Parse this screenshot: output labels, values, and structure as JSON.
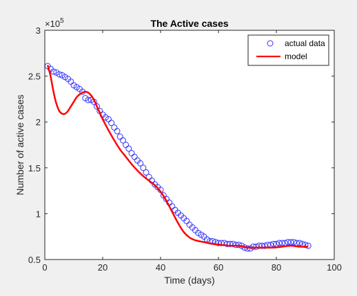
{
  "chart_data": {
    "type": "scatter",
    "title": "The Active cases",
    "xlabel": "Time (days)",
    "ylabel": "Number of active cases",
    "y_exponent_label": "×10",
    "y_exponent_power": "5",
    "xlim": [
      0,
      100
    ],
    "ylim": [
      0.5,
      3
    ],
    "xticks": [
      0,
      20,
      40,
      60,
      80,
      100
    ],
    "xtick_labels": [
      "0",
      "20",
      "40",
      "60",
      "80",
      "100"
    ],
    "yticks": [
      0.5,
      1,
      1.5,
      2,
      2.5,
      3
    ],
    "ytick_labels": [
      "0.5",
      "1",
      "1.5",
      "2",
      "2.5",
      "3"
    ],
    "grid": false,
    "legend_position": "top-right",
    "series": [
      {
        "name": "actual data",
        "kind": "markers",
        "marker": "circle-open",
        "color": "#3333ff",
        "x": [
          1,
          2,
          3,
          4,
          5,
          6,
          7,
          8,
          9,
          10,
          11,
          12,
          13,
          14,
          15,
          16,
          17,
          18,
          19,
          20,
          21,
          22,
          23,
          24,
          25,
          26,
          27,
          28,
          29,
          30,
          31,
          32,
          33,
          34,
          35,
          36,
          37,
          38,
          39,
          40,
          41,
          42,
          43,
          44,
          45,
          46,
          47,
          48,
          49,
          50,
          51,
          52,
          53,
          54,
          55,
          56,
          57,
          58,
          59,
          60,
          61,
          62,
          63,
          64,
          65,
          66,
          67,
          68,
          69,
          70,
          71,
          72,
          73,
          74,
          75,
          76,
          77,
          78,
          79,
          80,
          81,
          82,
          83,
          84,
          85,
          86,
          87,
          88,
          89,
          90,
          91
        ],
        "y": [
          2.61,
          2.58,
          2.55,
          2.54,
          2.52,
          2.51,
          2.49,
          2.47,
          2.44,
          2.4,
          2.38,
          2.36,
          2.33,
          2.26,
          2.24,
          2.24,
          2.22,
          2.17,
          2.12,
          2.08,
          2.05,
          2.03,
          1.99,
          1.94,
          1.9,
          1.84,
          1.8,
          1.75,
          1.71,
          1.66,
          1.62,
          1.58,
          1.55,
          1.5,
          1.45,
          1.4,
          1.36,
          1.32,
          1.29,
          1.26,
          1.2,
          1.16,
          1.12,
          1.08,
          1.04,
          1.01,
          0.98,
          0.95,
          0.92,
          0.88,
          0.85,
          0.82,
          0.79,
          0.77,
          0.75,
          0.72,
          0.7,
          0.7,
          0.69,
          0.68,
          0.68,
          0.68,
          0.67,
          0.67,
          0.67,
          0.66,
          0.66,
          0.65,
          0.63,
          0.62,
          0.62,
          0.64,
          0.64,
          0.65,
          0.65,
          0.65,
          0.66,
          0.66,
          0.67,
          0.67,
          0.68,
          0.68,
          0.68,
          0.69,
          0.69,
          0.69,
          0.68,
          0.68,
          0.67,
          0.66,
          0.65
        ]
      },
      {
        "name": "model",
        "kind": "line",
        "color": "#ff0000",
        "x": [
          1,
          2,
          3,
          4,
          5,
          6,
          7,
          8,
          9,
          10,
          11,
          12,
          13,
          14,
          15,
          16,
          17,
          18,
          19,
          20,
          22,
          24,
          26,
          28,
          30,
          32,
          34,
          36,
          38,
          40,
          42,
          44,
          46,
          48,
          50,
          52,
          55,
          58,
          61,
          64,
          67,
          70,
          73,
          76,
          79,
          82,
          85,
          88,
          91
        ],
        "y": [
          2.62,
          2.5,
          2.33,
          2.2,
          2.12,
          2.09,
          2.09,
          2.12,
          2.17,
          2.22,
          2.27,
          2.3,
          2.32,
          2.33,
          2.32,
          2.29,
          2.24,
          2.17,
          2.1,
          2.03,
          1.91,
          1.8,
          1.7,
          1.62,
          1.54,
          1.47,
          1.41,
          1.36,
          1.31,
          1.24,
          1.14,
          1.02,
          0.9,
          0.8,
          0.74,
          0.71,
          0.69,
          0.67,
          0.66,
          0.65,
          0.65,
          0.63,
          0.63,
          0.63,
          0.63,
          0.64,
          0.65,
          0.64,
          0.64
        ]
      }
    ]
  }
}
